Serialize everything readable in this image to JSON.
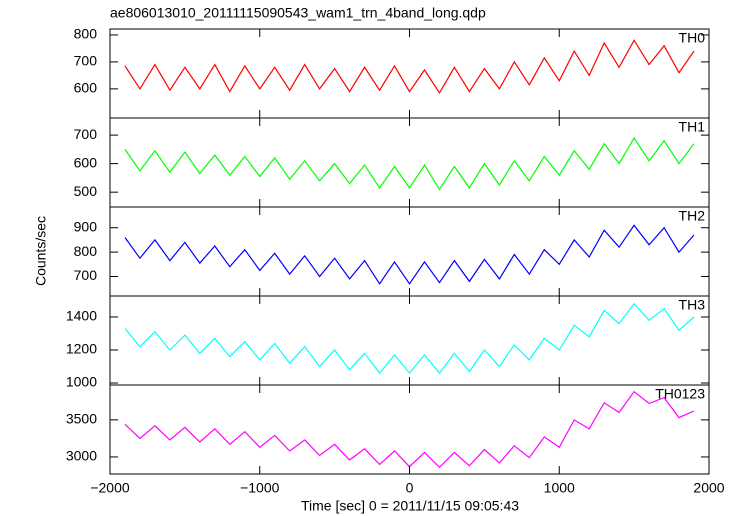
{
  "chart_data": [
    {
      "type": "line",
      "title": "ae806013010_20111115090543_wam1_trn_4band_long.qdp",
      "x": [
        -1900,
        -1800,
        -1700,
        -1600,
        -1500,
        -1400,
        -1300,
        -1200,
        -1100,
        -1000,
        -900,
        -800,
        -700,
        -600,
        -500,
        -400,
        -300,
        -200,
        -100,
        0,
        100,
        200,
        300,
        400,
        500,
        600,
        700,
        800,
        900,
        1000,
        1100,
        1200,
        1300,
        1400,
        1500,
        1600,
        1700,
        1800,
        1900
      ],
      "series": [
        {
          "name": "TH0",
          "color": "#ff0000",
          "values": [
            685,
            600,
            690,
            595,
            680,
            600,
            690,
            590,
            685,
            600,
            680,
            595,
            690,
            600,
            675,
            590,
            680,
            595,
            685,
            590,
            670,
            585,
            680,
            590,
            675,
            600,
            700,
            615,
            715,
            630,
            740,
            650,
            770,
            680,
            780,
            690,
            760,
            660,
            740
          ]
        }
      ],
      "xlim": [
        -2000,
        2000
      ],
      "xticks": [
        {
          "value": -2000,
          "label": "−2000"
        },
        {
          "value": -1000,
          "label": "−1000"
        },
        0,
        1000,
        2000
      ],
      "ylim": [
        492,
        822
      ],
      "yticks": [
        600,
        700,
        800
      ]
    },
    {
      "type": "line",
      "x": [
        -1900,
        -1800,
        -1700,
        -1600,
        -1500,
        -1400,
        -1300,
        -1200,
        -1100,
        -1000,
        -900,
        -800,
        -700,
        -600,
        -500,
        -400,
        -300,
        -200,
        -100,
        0,
        100,
        200,
        300,
        400,
        500,
        600,
        700,
        800,
        900,
        1000,
        1100,
        1200,
        1300,
        1400,
        1500,
        1600,
        1700,
        1800,
        1900
      ],
      "series": [
        {
          "name": "TH1",
          "color": "#00ff00",
          "values": [
            650,
            575,
            645,
            570,
            640,
            565,
            630,
            560,
            625,
            555,
            620,
            545,
            610,
            540,
            600,
            530,
            595,
            515,
            590,
            515,
            595,
            510,
            590,
            515,
            600,
            525,
            610,
            540,
            625,
            560,
            645,
            580,
            670,
            600,
            690,
            610,
            680,
            600,
            670
          ]
        }
      ],
      "xlim": [
        -2000,
        2000
      ],
      "xticks": [
        {
          "value": -2000,
          "label": "−2000"
        },
        {
          "value": -1000,
          "label": "−1000"
        },
        0,
        1000,
        2000
      ],
      "ylim": [
        448,
        760
      ],
      "yticks": [
        500,
        600,
        700
      ]
    },
    {
      "type": "line",
      "ylabel": "Counts/sec",
      "x": [
        -1900,
        -1800,
        -1700,
        -1600,
        -1500,
        -1400,
        -1300,
        -1200,
        -1100,
        -1000,
        -900,
        -800,
        -700,
        -600,
        -500,
        -400,
        -300,
        -200,
        -100,
        0,
        100,
        200,
        300,
        400,
        500,
        600,
        700,
        800,
        900,
        1000,
        1100,
        1200,
        1300,
        1400,
        1500,
        1600,
        1700,
        1800,
        1900
      ],
      "series": [
        {
          "name": "TH2",
          "color": "#0000ff",
          "values": [
            860,
            775,
            850,
            765,
            840,
            755,
            825,
            740,
            810,
            725,
            795,
            710,
            785,
            700,
            775,
            690,
            765,
            670,
            760,
            670,
            760,
            675,
            765,
            680,
            770,
            690,
            790,
            710,
            810,
            750,
            850,
            780,
            890,
            820,
            910,
            830,
            900,
            800,
            870
          ]
        }
      ],
      "xlim": [
        -2000,
        2000
      ],
      "xticks": [
        {
          "value": -2000,
          "label": "−2000"
        },
        {
          "value": -1000,
          "label": "−1000"
        },
        0,
        1000,
        2000
      ],
      "ylim": [
        620,
        985
      ],
      "yticks": [
        700,
        800,
        900
      ]
    },
    {
      "type": "line",
      "x": [
        -1900,
        -1800,
        -1700,
        -1600,
        -1500,
        -1400,
        -1300,
        -1200,
        -1100,
        -1000,
        -900,
        -800,
        -700,
        -600,
        -500,
        -400,
        -300,
        -200,
        -100,
        0,
        100,
        200,
        300,
        400,
        500,
        600,
        700,
        800,
        900,
        1000,
        1100,
        1200,
        1300,
        1400,
        1500,
        1600,
        1700,
        1800,
        1900
      ],
      "series": [
        {
          "name": "TH3",
          "color": "#00ffff",
          "values": [
            1330,
            1220,
            1310,
            1200,
            1290,
            1180,
            1270,
            1160,
            1250,
            1140,
            1240,
            1120,
            1220,
            1100,
            1200,
            1080,
            1180,
            1060,
            1170,
            1060,
            1170,
            1060,
            1180,
            1070,
            1200,
            1100,
            1230,
            1140,
            1270,
            1200,
            1350,
            1280,
            1440,
            1360,
            1480,
            1380,
            1450,
            1320,
            1400
          ]
        }
      ],
      "xlim": [
        -2000,
        2000
      ],
      "xticks": [
        {
          "value": -2000,
          "label": "−2000"
        },
        {
          "value": -1000,
          "label": "−1000"
        },
        0,
        1000,
        2000
      ],
      "ylim": [
        988,
        1527
      ],
      "yticks": [
        1000,
        1200,
        1400
      ]
    },
    {
      "type": "line",
      "xlabel": "Time [sec] 0 = 2011/11/15 09:05:43",
      "x": [
        -1900,
        -1800,
        -1700,
        -1600,
        -1500,
        -1400,
        -1300,
        -1200,
        -1100,
        -1000,
        -900,
        -800,
        -700,
        -600,
        -500,
        -400,
        -300,
        -200,
        -100,
        0,
        100,
        200,
        300,
        400,
        500,
        600,
        700,
        800,
        900,
        1000,
        1100,
        1200,
        1300,
        1400,
        1500,
        1600,
        1700,
        1800,
        1900
      ],
      "series": [
        {
          "name": "TH0123",
          "color": "#ff00ff",
          "values": [
            3440,
            3250,
            3420,
            3230,
            3400,
            3200,
            3380,
            3170,
            3340,
            3130,
            3290,
            3080,
            3230,
            3020,
            3170,
            2960,
            3110,
            2900,
            3080,
            2870,
            3060,
            2860,
            3060,
            2880,
            3100,
            2920,
            3150,
            2990,
            3270,
            3130,
            3500,
            3380,
            3730,
            3600,
            3880,
            3720,
            3800,
            3530,
            3620
          ]
        }
      ],
      "xlim": [
        -2000,
        2000
      ],
      "xticks": [
        {
          "value": -2000,
          "label": "−2000"
        },
        {
          "value": -1000,
          "label": "−1000"
        },
        0,
        1000,
        2000
      ],
      "ylim": [
        2770,
        3970
      ],
      "yticks": [
        3000,
        3500
      ]
    }
  ]
}
